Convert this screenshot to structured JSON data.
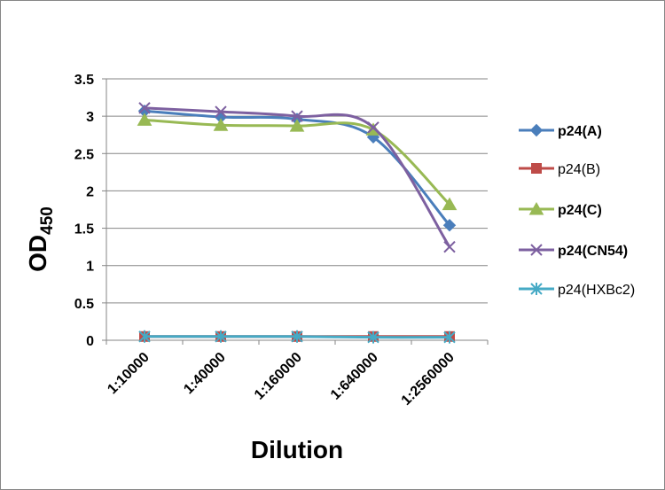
{
  "chart_data": {
    "type": "line",
    "xlabel": "Dilution",
    "ylabel": {
      "main": "OD",
      "sub": "450"
    },
    "categories": [
      "1:10000",
      "1:40000",
      "1:160000",
      "1:640000",
      "1:2560000"
    ],
    "ylim": [
      0,
      3.5
    ],
    "yticks": [
      "0",
      "0.5",
      "1",
      "1.5",
      "2",
      "2.5",
      "3",
      "3.5"
    ],
    "grid": true,
    "legend_position": "right",
    "series": [
      {
        "name": "p24(A)",
        "bold": true,
        "color": "#4A7EBB",
        "marker": "diamond",
        "values": [
          3.07,
          2.99,
          2.96,
          2.72,
          1.54
        ]
      },
      {
        "name": "p24(B)",
        "bold": false,
        "color": "#BE4B48",
        "marker": "square",
        "values": [
          0.05,
          0.05,
          0.05,
          0.05,
          0.05
        ]
      },
      {
        "name": "p24(C)",
        "bold": true,
        "color": "#98B954",
        "marker": "triangle",
        "values": [
          2.95,
          2.88,
          2.87,
          2.82,
          1.82
        ]
      },
      {
        "name": "p24(CN54)",
        "bold": true,
        "color": "#7D60A0",
        "marker": "x",
        "values": [
          3.11,
          3.06,
          3.0,
          2.85,
          1.25
        ]
      },
      {
        "name": "p24(HXBc2)",
        "bold": false,
        "color": "#46AAC5",
        "marker": "star",
        "values": [
          0.05,
          0.05,
          0.05,
          0.04,
          0.04
        ]
      }
    ]
  }
}
